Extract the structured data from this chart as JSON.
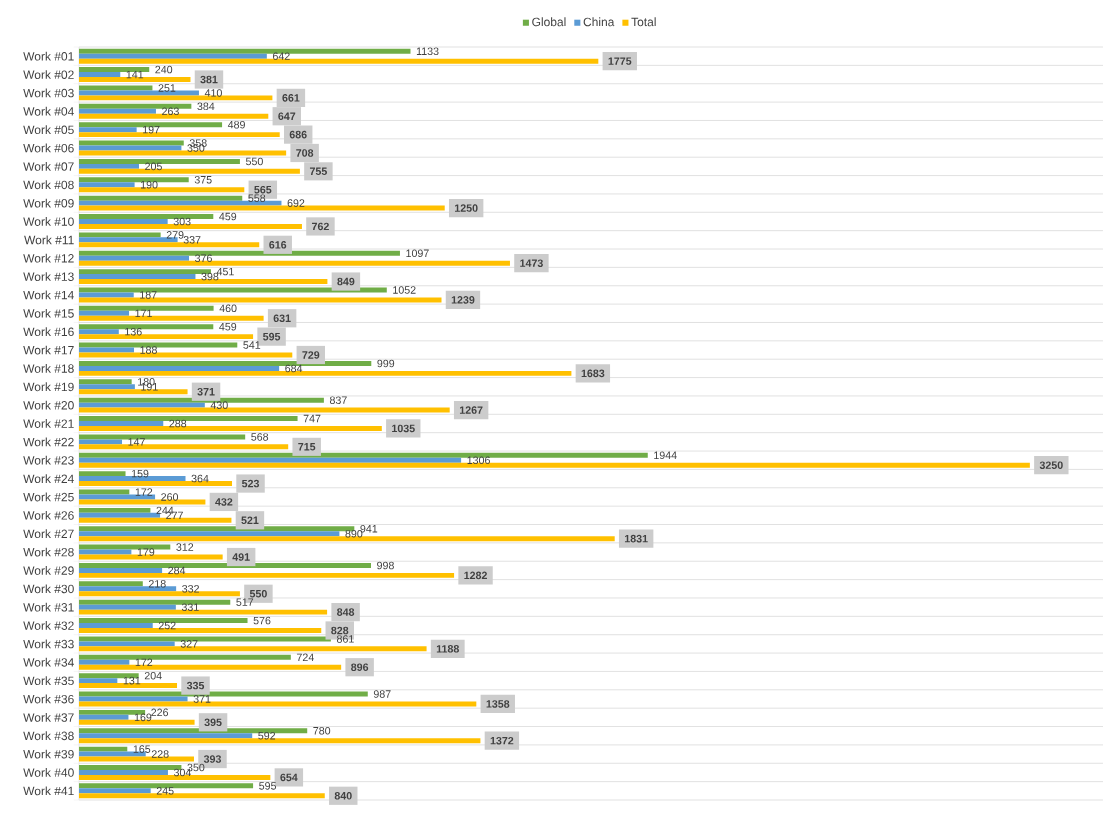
{
  "chart_data": {
    "type": "bar",
    "orientation": "horizontal",
    "legend": "top",
    "data_labels": true,
    "tick_labels": "y",
    "xlim": [
      0,
      3500
    ],
    "categories": [
      "Work #01",
      "Work #02",
      "Work #03",
      "Work #04",
      "Work #05",
      "Work #06",
      "Work #07",
      "Work #08",
      "Work #09",
      "Work #10",
      "Work #11",
      "Work #12",
      "Work #13",
      "Work #14",
      "Work #15",
      "Work #16",
      "Work #17",
      "Work #18",
      "Work #19",
      "Work #20",
      "Work #21",
      "Work #22",
      "Work #23",
      "Work #24",
      "Work #25",
      "Work #26",
      "Work #27",
      "Work #28",
      "Work #29",
      "Work #30",
      "Work #31",
      "Work #32",
      "Work #33",
      "Work #34",
      "Work #35",
      "Work #36",
      "Work #37",
      "Work #38",
      "Work #39",
      "Work #40",
      "Work #41"
    ],
    "series": [
      {
        "name": "Global",
        "color": "#70ad47",
        "values": [
          1133,
          240,
          251,
          384,
          489,
          358,
          550,
          375,
          558,
          459,
          279,
          1097,
          451,
          1052,
          460,
          459,
          541,
          999,
          180,
          837,
          747,
          568,
          1944,
          159,
          172,
          244,
          941,
          312,
          998,
          218,
          517,
          576,
          861,
          724,
          204,
          987,
          226,
          780,
          165,
          350,
          595
        ]
      },
      {
        "name": "China",
        "color": "#5b9bd5",
        "values": [
          642,
          141,
          410,
          263,
          197,
          350,
          205,
          190,
          692,
          303,
          337,
          376,
          398,
          187,
          171,
          136,
          188,
          684,
          191,
          430,
          288,
          147,
          1306,
          364,
          260,
          277,
          890,
          179,
          284,
          332,
          331,
          252,
          327,
          172,
          131,
          371,
          169,
          592,
          228,
          304,
          245
        ]
      },
      {
        "name": "Total",
        "color": "#ffc000",
        "values": [
          1775,
          381,
          661,
          647,
          686,
          708,
          755,
          565,
          1250,
          762,
          616,
          1473,
          849,
          1239,
          631,
          595,
          729,
          1683,
          371,
          1267,
          1035,
          715,
          3250,
          523,
          432,
          521,
          1831,
          491,
          1282,
          550,
          848,
          828,
          1188,
          896,
          335,
          1358,
          395,
          1372,
          393,
          654,
          840
        ]
      }
    ]
  }
}
